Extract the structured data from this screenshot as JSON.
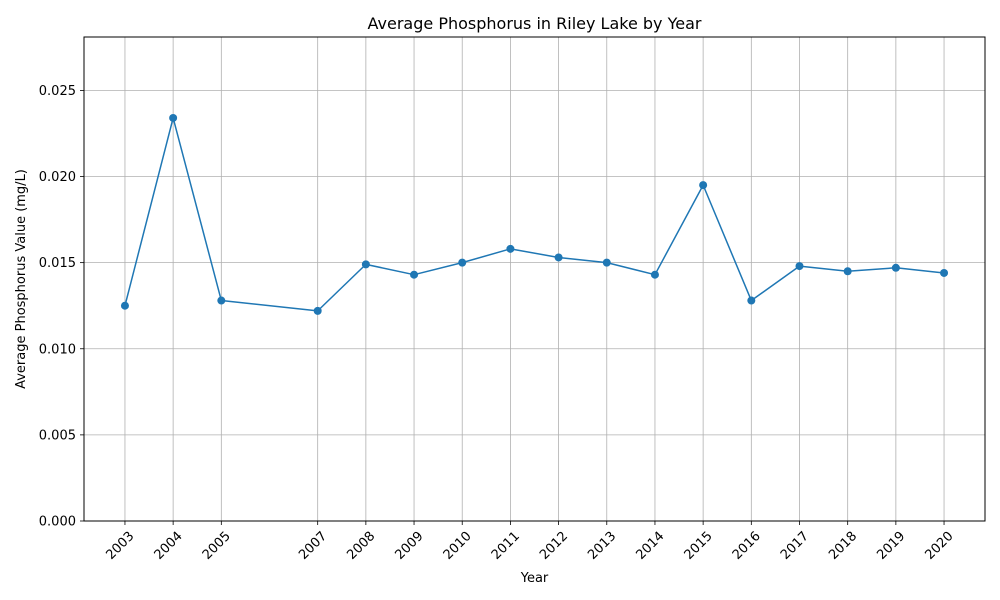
{
  "chart_data": {
    "type": "line",
    "title": "Average Phosphorus in Riley Lake by Year",
    "xlabel": "Year",
    "ylabel": "Average Phosphorus Value (mg/L)",
    "x": [
      2003,
      2004,
      2005,
      2007,
      2008,
      2009,
      2010,
      2011,
      2012,
      2013,
      2014,
      2015,
      2016,
      2017,
      2018,
      2019,
      2020
    ],
    "x_tick_labels": [
      "2003",
      "2004",
      "2005",
      "2007",
      "2008",
      "2009",
      "2010",
      "2011",
      "2012",
      "2013",
      "2014",
      "2015",
      "2016",
      "2017",
      "2018",
      "2019",
      "2020"
    ],
    "series": [
      {
        "values": [
          0.0125,
          0.0234,
          0.0128,
          0.0122,
          0.0149,
          0.0143,
          0.015,
          0.0158,
          0.0153,
          0.015,
          0.0143,
          0.0195,
          0.0128,
          0.0148,
          0.0145,
          0.0147,
          0.0144
        ],
        "color": "#1f77b4",
        "marker": "circle"
      }
    ],
    "y_ticks": [
      0.0,
      0.005,
      0.01,
      0.015,
      0.02,
      0.025
    ],
    "y_tick_labels": [
      "0.000",
      "0.005",
      "0.010",
      "0.015",
      "0.020",
      "0.025"
    ],
    "xlim": [
      2002.15,
      2020.85
    ],
    "ylim": [
      0,
      0.0281
    ],
    "grid": true,
    "grid_color": "#b0b0b0"
  }
}
